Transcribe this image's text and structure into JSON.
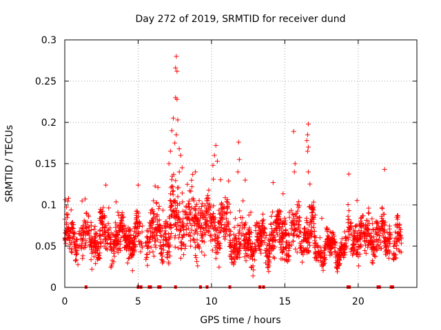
{
  "chart_data": {
    "type": "scatter",
    "title": "Day 272 of 2019, SRMTID for receiver dund",
    "xlabel": "GPS time / hours",
    "ylabel": "SRMTID / TECUs",
    "xlim": [
      0,
      24
    ],
    "ylim": [
      0,
      0.3
    ],
    "xticks": [
      0,
      5,
      10,
      15,
      20
    ],
    "yticks": [
      0,
      0.05,
      0.1,
      0.15,
      0.2,
      0.25,
      0.3
    ],
    "ytick_labels": [
      "0",
      "0.05",
      "0.1",
      "0.15",
      "0.2",
      "0.25",
      "0.3"
    ],
    "grid": true,
    "marker": "+",
    "series": [
      {
        "name": "SRMTID",
        "color": "#ff0000",
        "segments": [
          {
            "start": 0.0,
            "end": 5.3,
            "base": 0.06,
            "spread": 0.022
          },
          {
            "start": 5.5,
            "end": 7.2,
            "base": 0.065,
            "spread": 0.025
          },
          {
            "start": 7.2,
            "end": 9.5,
            "base": 0.08,
            "spread": 0.035
          },
          {
            "start": 9.5,
            "end": 11.2,
            "base": 0.075,
            "spread": 0.03
          },
          {
            "start": 11.2,
            "end": 14.0,
            "base": 0.055,
            "spread": 0.022
          },
          {
            "start": 14.0,
            "end": 17.0,
            "base": 0.065,
            "spread": 0.025
          },
          {
            "start": 17.0,
            "end": 19.2,
            "base": 0.047,
            "spread": 0.013
          },
          {
            "start": 19.3,
            "end": 22.2,
            "base": 0.062,
            "spread": 0.022
          },
          {
            "start": 22.4,
            "end": 22.95,
            "base": 0.055,
            "spread": 0.02
          }
        ],
        "highlights": [
          {
            "x": 7.6,
            "y": 0.28
          },
          {
            "x": 7.55,
            "y": 0.266
          },
          {
            "x": 7.65,
            "y": 0.262
          },
          {
            "x": 7.55,
            "y": 0.23
          },
          {
            "x": 7.65,
            "y": 0.228
          },
          {
            "x": 7.4,
            "y": 0.205
          },
          {
            "x": 7.7,
            "y": 0.203
          },
          {
            "x": 7.3,
            "y": 0.19
          },
          {
            "x": 7.6,
            "y": 0.185
          },
          {
            "x": 7.5,
            "y": 0.175
          },
          {
            "x": 7.8,
            "y": 0.168
          },
          {
            "x": 7.2,
            "y": 0.165
          },
          {
            "x": 7.1,
            "y": 0.15
          },
          {
            "x": 8.0,
            "y": 0.145
          },
          {
            "x": 7.9,
            "y": 0.16
          },
          {
            "x": 10.3,
            "y": 0.172
          },
          {
            "x": 10.2,
            "y": 0.16
          },
          {
            "x": 10.4,
            "y": 0.153
          },
          {
            "x": 10.1,
            "y": 0.148
          },
          {
            "x": 11.85,
            "y": 0.176
          },
          {
            "x": 11.9,
            "y": 0.155
          },
          {
            "x": 11.8,
            "y": 0.14
          },
          {
            "x": 15.6,
            "y": 0.189
          },
          {
            "x": 15.7,
            "y": 0.15
          },
          {
            "x": 15.65,
            "y": 0.14
          },
          {
            "x": 16.6,
            "y": 0.198
          },
          {
            "x": 16.55,
            "y": 0.185
          },
          {
            "x": 16.5,
            "y": 0.178
          },
          {
            "x": 16.6,
            "y": 0.17
          },
          {
            "x": 16.55,
            "y": 0.165
          },
          {
            "x": 16.6,
            "y": 0.14
          },
          {
            "x": 21.8,
            "y": 0.143
          },
          {
            "x": 14.2,
            "y": 0.127
          },
          {
            "x": 2.8,
            "y": 0.124
          },
          {
            "x": 5.0,
            "y": 0.124
          },
          {
            "x": 12.3,
            "y": 0.13
          }
        ],
        "zero_markers": [
          1.45,
          5.0,
          5.2,
          5.75,
          5.85,
          6.4,
          6.5,
          7.55,
          9.25,
          9.7,
          11.25,
          13.3,
          13.55,
          19.3,
          19.4,
          21.35,
          21.45,
          22.25,
          22.35
        ]
      }
    ]
  }
}
